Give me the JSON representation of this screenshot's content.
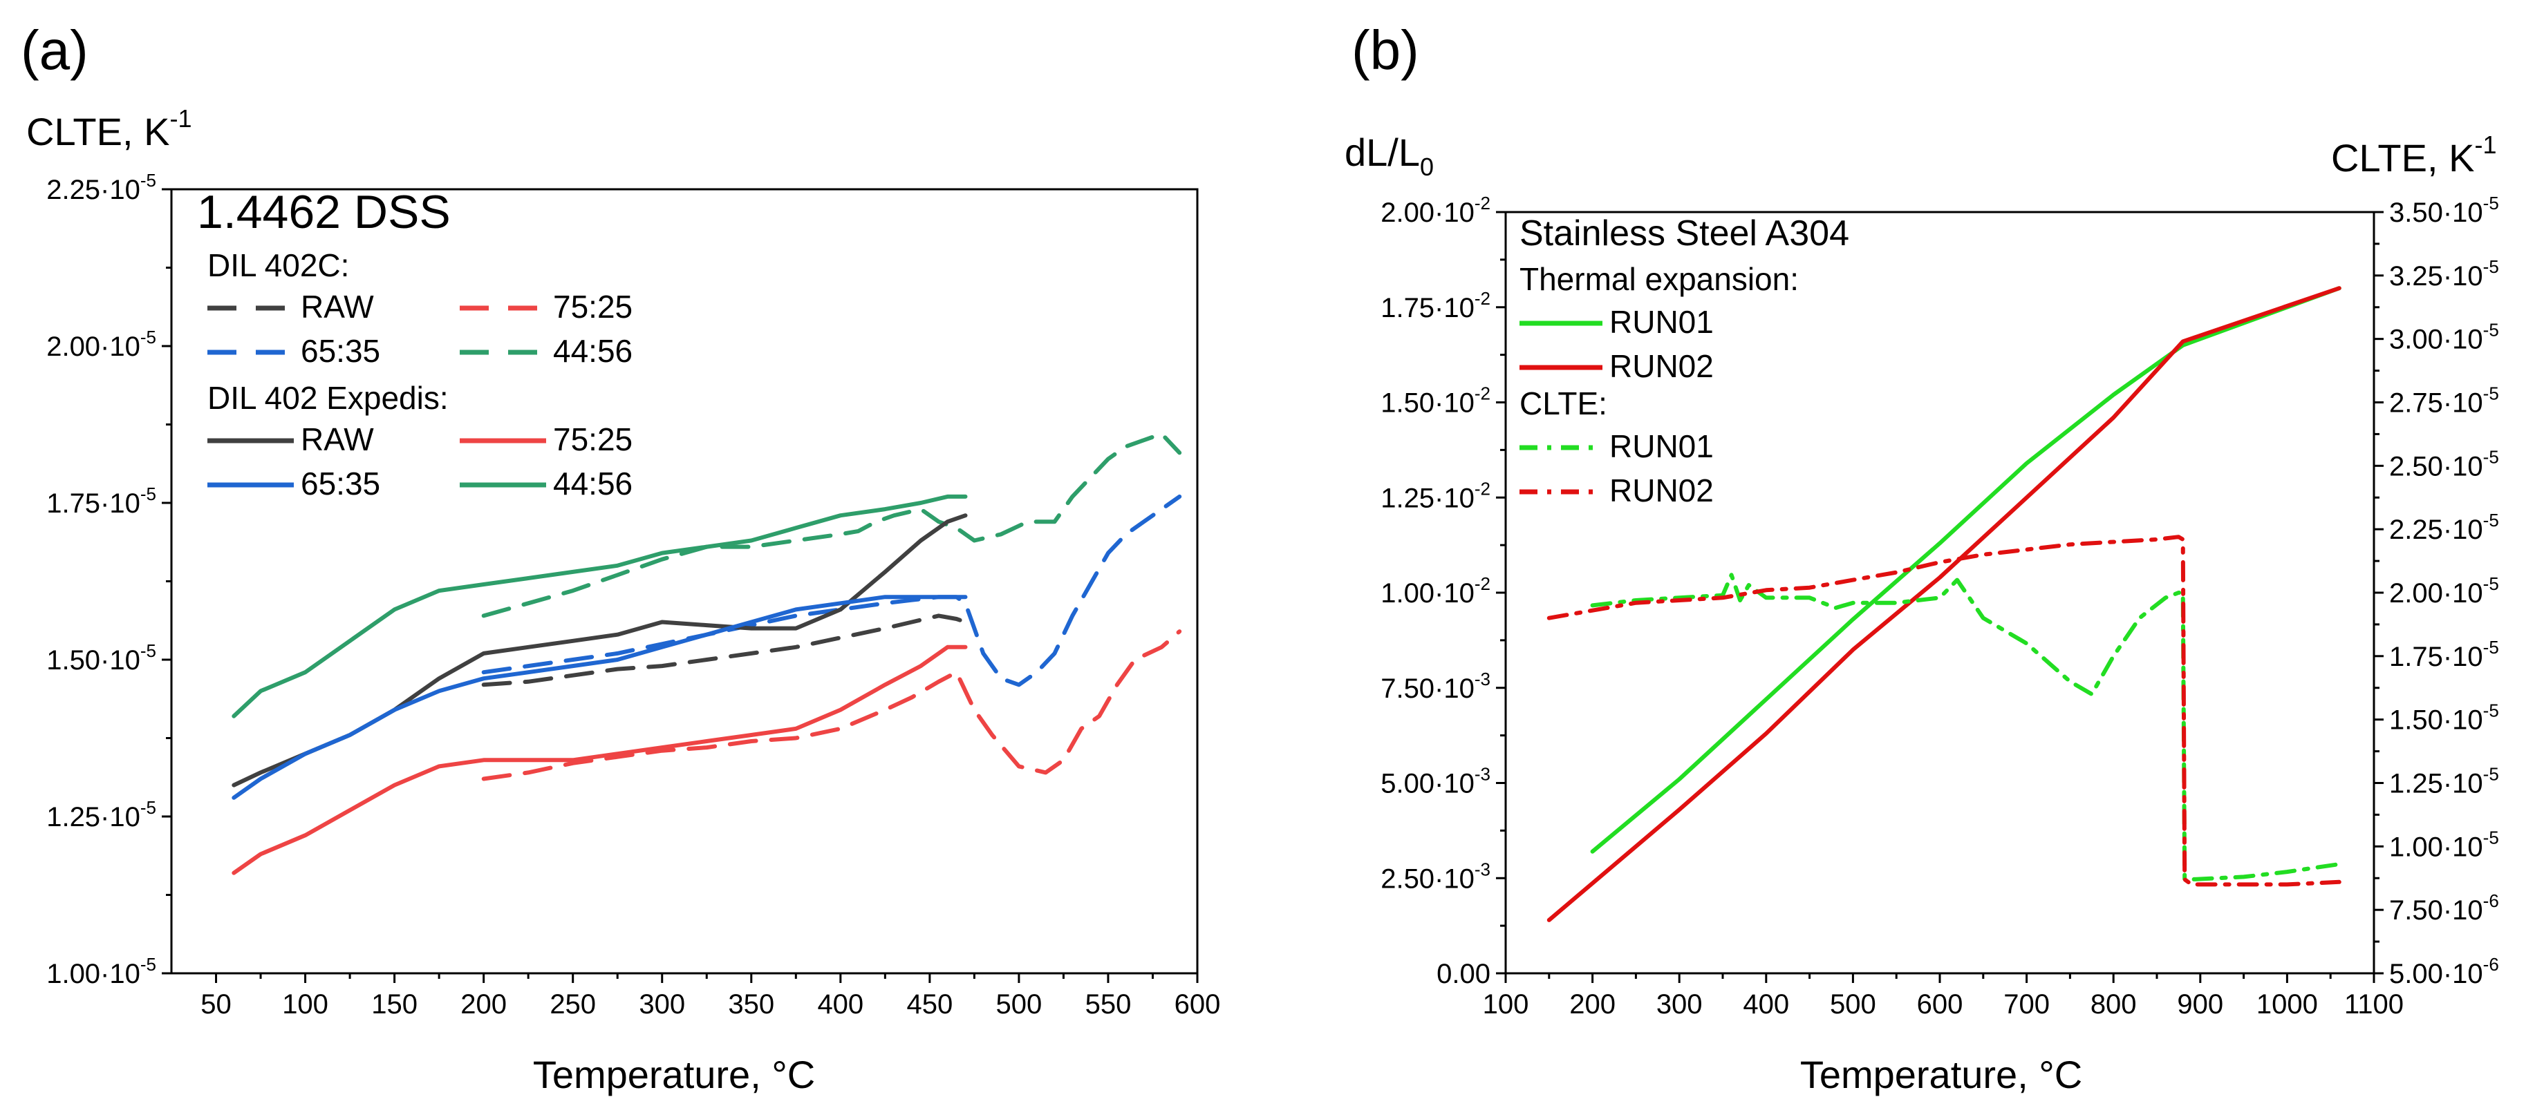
{
  "chart_data": [
    {
      "type": "line",
      "panel_label": "(a)",
      "title": "1.4462 DSS",
      "ylabel": "CLTE, K",
      "ylabel_sup": "-1",
      "xlabel": "Temperature, °C",
      "xlim": [
        25,
        600
      ],
      "ylim": [
        1e-05,
        2.25e-05
      ],
      "x_ticks": [
        "50",
        "100",
        "150",
        "200",
        "250",
        "300",
        "350",
        "400",
        "450",
        "500",
        "550",
        "600"
      ],
      "y_ticks": [
        {
          "value": 1e-05,
          "mant": "1.00·10",
          "exp": "-5"
        },
        {
          "value": 1.25e-05,
          "mant": "1.25·10",
          "exp": "-5"
        },
        {
          "value": 1.5e-05,
          "mant": "1.50·10",
          "exp": "-5"
        },
        {
          "value": 1.75e-05,
          "mant": "1.75·10",
          "exp": "-5"
        },
        {
          "value": 2e-05,
          "mant": "2.00·10",
          "exp": "-5"
        },
        {
          "value": 2.25e-05,
          "mant": "2.25·10",
          "exp": "-5"
        }
      ],
      "legend_groups": [
        "DIL 402C:",
        "DIL 402 Expedis:"
      ],
      "series": [
        {
          "name": "RAW",
          "group": "DIL 402C:",
          "color": "#404040",
          "style": "dashed",
          "x": [
            200,
            225,
            250,
            275,
            300,
            325,
            350,
            375,
            400,
            425,
            440,
            455,
            465,
            470
          ],
          "y": [
            1.46e-05,
            1.465e-05,
            1.475e-05,
            1.485e-05,
            1.49e-05,
            1.5e-05,
            1.51e-05,
            1.52e-05,
            1.535e-05,
            1.55e-05,
            1.56e-05,
            1.57e-05,
            1.565e-05,
            1.56e-05
          ]
        },
        {
          "name": "75:25",
          "group": "DIL 402C:",
          "color": "#ee4444",
          "style": "dashed",
          "x": [
            200,
            225,
            250,
            275,
            300,
            325,
            350,
            375,
            400,
            425,
            440,
            455,
            465,
            475,
            485,
            500,
            515,
            525,
            535,
            545,
            555,
            565,
            580,
            590
          ],
          "y": [
            1.31e-05,
            1.32e-05,
            1.335e-05,
            1.345e-05,
            1.355e-05,
            1.36e-05,
            1.37e-05,
            1.375e-05,
            1.39e-05,
            1.42e-05,
            1.44e-05,
            1.465e-05,
            1.48e-05,
            1.42e-05,
            1.38e-05,
            1.33e-05,
            1.32e-05,
            1.34e-05,
            1.39e-05,
            1.41e-05,
            1.46e-05,
            1.5e-05,
            1.52e-05,
            1.545e-05
          ]
        },
        {
          "name": "65:35",
          "group": "DIL 402C:",
          "color": "#1f66d1",
          "style": "dashed",
          "x": [
            200,
            225,
            250,
            275,
            300,
            325,
            350,
            375,
            400,
            425,
            440,
            455,
            465,
            470,
            480,
            490,
            500,
            510,
            520,
            530,
            540,
            550,
            560,
            570,
            580,
            590
          ],
          "y": [
            1.48e-05,
            1.49e-05,
            1.5e-05,
            1.51e-05,
            1.525e-05,
            1.54e-05,
            1.555e-05,
            1.57e-05,
            1.58e-05,
            1.59e-05,
            1.595e-05,
            1.6e-05,
            1.6e-05,
            1.59e-05,
            1.51e-05,
            1.47e-05,
            1.46e-05,
            1.48e-05,
            1.51e-05,
            1.57e-05,
            1.62e-05,
            1.67e-05,
            1.7e-05,
            1.72e-05,
            1.74e-05,
            1.76e-05
          ]
        },
        {
          "name": "44:56",
          "group": "DIL 402C:",
          "color": "#2e9e6a",
          "style": "dashed",
          "x": [
            200,
            225,
            250,
            275,
            300,
            325,
            350,
            375,
            400,
            410,
            420,
            430,
            445,
            455,
            465,
            475,
            490,
            505,
            520,
            530,
            540,
            550,
            560,
            570,
            580,
            590
          ],
          "y": [
            1.57e-05,
            1.59e-05,
            1.61e-05,
            1.635e-05,
            1.66e-05,
            1.68e-05,
            1.68e-05,
            1.69e-05,
            1.7e-05,
            1.705e-05,
            1.72e-05,
            1.73e-05,
            1.74e-05,
            1.72e-05,
            1.71e-05,
            1.69e-05,
            1.7e-05,
            1.72e-05,
            1.72e-05,
            1.76e-05,
            1.79e-05,
            1.82e-05,
            1.84e-05,
            1.85e-05,
            1.86e-05,
            1.83e-05
          ]
        },
        {
          "name": "RAW",
          "group": "DIL 402 Expedis:",
          "color": "#404040",
          "style": "solid",
          "x": [
            60,
            75,
            100,
            125,
            150,
            175,
            200,
            225,
            250,
            275,
            300,
            325,
            350,
            375,
            400,
            425,
            445,
            460,
            470
          ],
          "y": [
            1.3e-05,
            1.32e-05,
            1.35e-05,
            1.38e-05,
            1.42e-05,
            1.47e-05,
            1.51e-05,
            1.52e-05,
            1.53e-05,
            1.54e-05,
            1.56e-05,
            1.555e-05,
            1.55e-05,
            1.55e-05,
            1.58e-05,
            1.64e-05,
            1.69e-05,
            1.72e-05,
            1.73e-05
          ]
        },
        {
          "name": "75:25",
          "group": "DIL 402 Expedis:",
          "color": "#ee4444",
          "style": "solid",
          "x": [
            60,
            75,
            100,
            125,
            150,
            175,
            200,
            225,
            250,
            275,
            300,
            325,
            350,
            375,
            400,
            425,
            445,
            460,
            470
          ],
          "y": [
            1.16e-05,
            1.19e-05,
            1.22e-05,
            1.26e-05,
            1.3e-05,
            1.33e-05,
            1.34e-05,
            1.34e-05,
            1.34e-05,
            1.35e-05,
            1.36e-05,
            1.37e-05,
            1.38e-05,
            1.39e-05,
            1.42e-05,
            1.46e-05,
            1.49e-05,
            1.52e-05,
            1.52e-05
          ]
        },
        {
          "name": "65:35",
          "group": "DIL 402 Expedis:",
          "color": "#1f66d1",
          "style": "solid",
          "x": [
            60,
            75,
            100,
            125,
            150,
            175,
            200,
            225,
            250,
            275,
            300,
            325,
            350,
            375,
            400,
            425,
            445,
            460,
            470
          ],
          "y": [
            1.28e-05,
            1.31e-05,
            1.35e-05,
            1.38e-05,
            1.42e-05,
            1.45e-05,
            1.47e-05,
            1.48e-05,
            1.49e-05,
            1.5e-05,
            1.52e-05,
            1.54e-05,
            1.56e-05,
            1.58e-05,
            1.59e-05,
            1.6e-05,
            1.6e-05,
            1.6e-05,
            1.6e-05
          ]
        },
        {
          "name": "44:56",
          "group": "DIL 402 Expedis:",
          "color": "#2e9e6a",
          "style": "solid",
          "x": [
            60,
            75,
            100,
            125,
            150,
            175,
            200,
            225,
            250,
            275,
            300,
            325,
            350,
            375,
            400,
            425,
            445,
            460,
            470
          ],
          "y": [
            1.41e-05,
            1.45e-05,
            1.48e-05,
            1.53e-05,
            1.58e-05,
            1.61e-05,
            1.62e-05,
            1.63e-05,
            1.64e-05,
            1.65e-05,
            1.67e-05,
            1.68e-05,
            1.69e-05,
            1.71e-05,
            1.73e-05,
            1.74e-05,
            1.75e-05,
            1.76e-05,
            1.76e-05
          ]
        }
      ]
    },
    {
      "type": "line",
      "panel_label": "(b)",
      "title": "Stainless Steel A304",
      "ylabel_left": "dL/L",
      "ylabel_left_sub": "0",
      "ylabel_right": "CLTE, K",
      "ylabel_right_sup": "-1",
      "xlabel": "Temperature, °C",
      "xlim": [
        100,
        1100
      ],
      "ylim_left": [
        0,
        0.02
      ],
      "ylim_right": [
        5e-06,
        3.5e-05
      ],
      "x_ticks": [
        "100",
        "200",
        "300",
        "400",
        "500",
        "600",
        "700",
        "800",
        "900",
        "1000",
        "1100"
      ],
      "y_ticks_left": [
        {
          "value": 0,
          "mant": "0.00",
          "exp": ""
        },
        {
          "value": 0.0025,
          "mant": "2.50·10",
          "exp": "-3"
        },
        {
          "value": 0.005,
          "mant": "5.00·10",
          "exp": "-3"
        },
        {
          "value": 0.0075,
          "mant": "7.50·10",
          "exp": "-3"
        },
        {
          "value": 0.01,
          "mant": "1.00·10",
          "exp": "-2"
        },
        {
          "value": 0.0125,
          "mant": "1.25·10",
          "exp": "-2"
        },
        {
          "value": 0.015,
          "mant": "1.50·10",
          "exp": "-2"
        },
        {
          "value": 0.0175,
          "mant": "1.75·10",
          "exp": "-2"
        },
        {
          "value": 0.02,
          "mant": "2.00·10",
          "exp": "-2"
        }
      ],
      "y_ticks_right": [
        {
          "value": 5e-06,
          "mant": "5.00·10",
          "exp": "-6"
        },
        {
          "value": 7.5e-06,
          "mant": "7.50·10",
          "exp": "-6"
        },
        {
          "value": 1e-05,
          "mant": "1.00·10",
          "exp": "-5"
        },
        {
          "value": 1.25e-05,
          "mant": "1.25·10",
          "exp": "-5"
        },
        {
          "value": 1.5e-05,
          "mant": "1.50·10",
          "exp": "-5"
        },
        {
          "value": 1.75e-05,
          "mant": "1.75·10",
          "exp": "-5"
        },
        {
          "value": 2e-05,
          "mant": "2.00·10",
          "exp": "-5"
        },
        {
          "value": 2.25e-05,
          "mant": "2.25·10",
          "exp": "-5"
        },
        {
          "value": 2.5e-05,
          "mant": "2.50·10",
          "exp": "-5"
        },
        {
          "value": 2.75e-05,
          "mant": "2.75·10",
          "exp": "-5"
        },
        {
          "value": 3e-05,
          "mant": "3.00·10",
          "exp": "-5"
        },
        {
          "value": 3.25e-05,
          "mant": "3.25·10",
          "exp": "-5"
        },
        {
          "value": 3.5e-05,
          "mant": "3.50·10",
          "exp": "-5"
        }
      ],
      "legend_groups": [
        "Thermal expansion:",
        "CLTE:"
      ],
      "series": [
        {
          "name": "RUN01",
          "group": "Thermal expansion:",
          "axis": "left",
          "color": "#22dd22",
          "style": "solid",
          "x": [
            200,
            300,
            400,
            500,
            600,
            700,
            800,
            880,
            1060
          ],
          "y": [
            0.0032,
            0.0051,
            0.0072,
            0.0093,
            0.0113,
            0.0134,
            0.0152,
            0.0165,
            0.018
          ]
        },
        {
          "name": "RUN02",
          "group": "Thermal expansion:",
          "axis": "left",
          "color": "#e01010",
          "style": "solid",
          "x": [
            150,
            300,
            400,
            500,
            600,
            700,
            800,
            880,
            1060
          ],
          "y": [
            0.0014,
            0.0043,
            0.0063,
            0.0085,
            0.0104,
            0.0125,
            0.0146,
            0.0166,
            0.018
          ]
        },
        {
          "name": "RUN01",
          "group": "CLTE:",
          "axis": "right",
          "color": "#22dd22",
          "style": "dashdot",
          "x": [
            200,
            250,
            300,
            350,
            360,
            370,
            380,
            400,
            450,
            480,
            500,
            550,
            600,
            620,
            650,
            700,
            750,
            775,
            800,
            830,
            860,
            875,
            880,
            882,
            890,
            950,
            1000,
            1060
          ],
          "y": [
            1.95e-05,
            1.97e-05,
            1.98e-05,
            1.99e-05,
            2.07e-05,
            1.97e-05,
            2.03e-05,
            1.98e-05,
            1.98e-05,
            1.94e-05,
            1.96e-05,
            1.96e-05,
            1.98e-05,
            2.05e-05,
            1.9e-05,
            1.8e-05,
            1.65e-05,
            1.6e-05,
            1.75e-05,
            1.9e-05,
            1.98e-05,
            2e-05,
            2e-05,
            8.7e-06,
            8.7e-06,
            8.8e-06,
            9e-06,
            9.3e-06
          ]
        },
        {
          "name": "RUN02",
          "group": "CLTE:",
          "axis": "right",
          "color": "#e01010",
          "style": "dashdot",
          "x": [
            150,
            200,
            250,
            300,
            350,
            400,
            450,
            500,
            550,
            600,
            650,
            700,
            750,
            800,
            850,
            875,
            880,
            882,
            890,
            950,
            1000,
            1060
          ],
          "y": [
            1.9e-05,
            1.93e-05,
            1.96e-05,
            1.97e-05,
            1.98e-05,
            2.01e-05,
            2.02e-05,
            2.05e-05,
            2.08e-05,
            2.12e-05,
            2.15e-05,
            2.17e-05,
            2.19e-05,
            2.2e-05,
            2.21e-05,
            2.22e-05,
            2.21e-05,
            8.7e-06,
            8.5e-06,
            8.5e-06,
            8.5e-06,
            8.6e-06
          ]
        }
      ]
    }
  ]
}
